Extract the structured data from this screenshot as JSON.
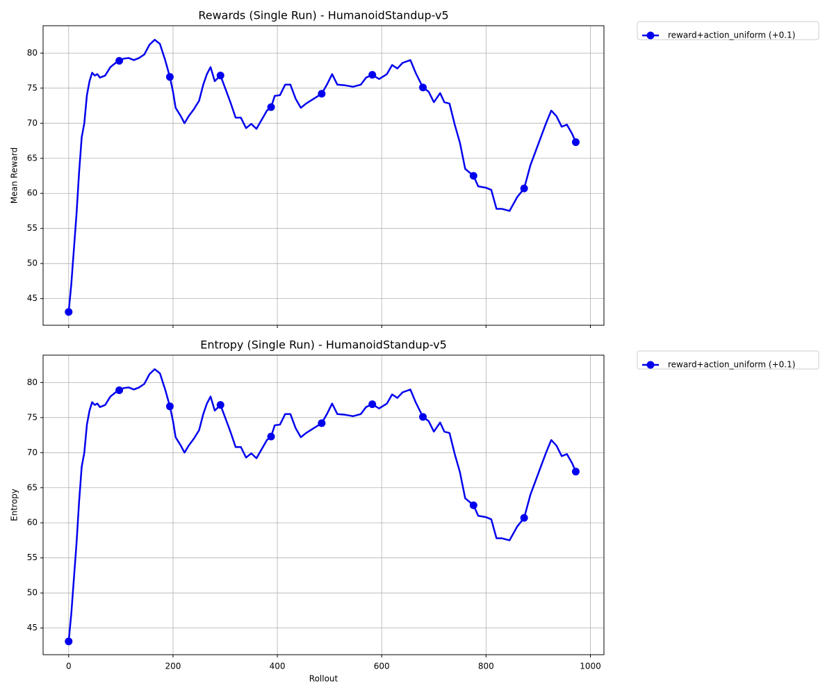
{
  "chart_data": [
    {
      "type": "line",
      "title": "Rewards (Single Run) - HumanoidStandup-v5",
      "ylabel": "Mean Reward",
      "x": [
        0,
        5,
        10,
        15,
        20,
        25,
        30,
        35,
        40,
        45,
        50,
        55,
        60,
        70,
        80,
        90,
        97,
        105,
        115,
        125,
        135,
        145,
        155,
        165,
        175,
        185,
        194,
        200,
        205,
        215,
        222,
        230,
        240,
        250,
        258,
        265,
        272,
        280,
        291,
        300,
        310,
        320,
        330,
        340,
        350,
        360,
        370,
        380,
        388,
        395,
        405,
        415,
        425,
        435,
        445,
        455,
        470,
        485,
        495,
        505,
        515,
        530,
        545,
        560,
        570,
        582,
        595,
        610,
        620,
        630,
        640,
        655,
        665,
        679,
        690,
        700,
        712,
        720,
        730,
        740,
        750,
        760,
        776,
        785,
        800,
        810,
        820,
        830,
        845,
        860,
        873,
        885,
        895,
        905,
        915,
        925,
        935,
        945,
        955,
        965,
        972,
        975
      ],
      "series": [
        {
          "name": "reward+action_uniform (+0.1)",
          "color": "#0000ee",
          "values": [
            43.1,
            47,
            52,
            57,
            63,
            68,
            70,
            74,
            76,
            77.2,
            76.8,
            77,
            76.5,
            76.8,
            78,
            78.6,
            78.9,
            79.2,
            79.3,
            79,
            79.3,
            79.8,
            81.2,
            81.9,
            81.3,
            79,
            76.6,
            74.5,
            72.2,
            71,
            70,
            71,
            72,
            73.2,
            75.5,
            77,
            78,
            76,
            76.8,
            75,
            73,
            70.8,
            70.8,
            69.3,
            69.9,
            69.2,
            70.5,
            71.8,
            72.3,
            73.9,
            74,
            75.5,
            75.5,
            73.5,
            72.2,
            72.8,
            73.5,
            74.2,
            75.5,
            77,
            75.5,
            75.4,
            75.2,
            75.5,
            76.5,
            76.9,
            76.3,
            77,
            78.3,
            77.8,
            78.6,
            79,
            77.2,
            75.1,
            74.5,
            73,
            74.3,
            73,
            72.8,
            69.8,
            67.2,
            63.5,
            62.5,
            61,
            60.8,
            60.5,
            57.8,
            57.8,
            57.5,
            59.5,
            60.7,
            64,
            66,
            68,
            70,
            71.8,
            71,
            69.5,
            69.8,
            68.5,
            67.3,
            67
          ],
          "markevery": [
            0,
            16,
            26,
            38,
            48,
            57,
            65,
            73,
            82,
            90,
            100
          ]
        }
      ],
      "xlim": [
        -49,
        1026
      ],
      "xticks": [
        0,
        200,
        400,
        600,
        800,
        1000
      ],
      "xtick_labels": false,
      "ylim": [
        41.2,
        83.9
      ],
      "yticks": [
        45,
        50,
        55,
        60,
        65,
        70,
        75,
        80
      ],
      "grid": true,
      "legend": "outside-upper-right"
    },
    {
      "type": "line",
      "title": "Entropy (Single Run) - HumanoidStandup-v5",
      "ylabel": "Entropy",
      "xlabel": "Rollout",
      "x": [
        0,
        5,
        10,
        15,
        20,
        25,
        30,
        35,
        40,
        45,
        50,
        55,
        60,
        70,
        80,
        90,
        97,
        105,
        115,
        125,
        135,
        145,
        155,
        165,
        175,
        185,
        194,
        200,
        205,
        215,
        222,
        230,
        240,
        250,
        258,
        265,
        272,
        280,
        291,
        300,
        310,
        320,
        330,
        340,
        350,
        360,
        370,
        380,
        388,
        395,
        405,
        415,
        425,
        435,
        445,
        455,
        470,
        485,
        495,
        505,
        515,
        530,
        545,
        560,
        570,
        582,
        595,
        610,
        620,
        630,
        640,
        655,
        665,
        679,
        690,
        700,
        712,
        720,
        730,
        740,
        750,
        760,
        776,
        785,
        800,
        810,
        820,
        830,
        845,
        860,
        873,
        885,
        895,
        905,
        915,
        925,
        935,
        945,
        955,
        965,
        972,
        975
      ],
      "series": [
        {
          "name": "reward+action_uniform (+0.1)",
          "color": "#0000ee",
          "values": [
            43.1,
            47,
            52,
            57,
            63,
            68,
            70,
            74,
            76,
            77.2,
            76.8,
            77,
            76.5,
            76.8,
            78,
            78.6,
            78.9,
            79.2,
            79.3,
            79,
            79.3,
            79.8,
            81.2,
            81.9,
            81.3,
            79,
            76.6,
            74.5,
            72.2,
            71,
            70,
            71,
            72,
            73.2,
            75.5,
            77,
            78,
            76,
            76.8,
            75,
            73,
            70.8,
            70.8,
            69.3,
            69.9,
            69.2,
            70.5,
            71.8,
            72.3,
            73.9,
            74,
            75.5,
            75.5,
            73.5,
            72.2,
            72.8,
            73.5,
            74.2,
            75.5,
            77,
            75.5,
            75.4,
            75.2,
            75.5,
            76.5,
            76.9,
            76.3,
            77,
            78.3,
            77.8,
            78.6,
            79,
            77.2,
            75.1,
            74.5,
            73,
            74.3,
            73,
            72.8,
            69.8,
            67.2,
            63.5,
            62.5,
            61,
            60.8,
            60.5,
            57.8,
            57.8,
            57.5,
            59.5,
            60.7,
            64,
            66,
            68,
            70,
            71.8,
            71,
            69.5,
            69.8,
            68.5,
            67.3,
            67
          ],
          "markevery": [
            0,
            16,
            26,
            38,
            48,
            57,
            65,
            73,
            82,
            90,
            100
          ]
        }
      ],
      "xlim": [
        -49,
        1026
      ],
      "xticks": [
        0,
        200,
        400,
        600,
        800,
        1000
      ],
      "xtick_labels": true,
      "ylim": [
        41.2,
        83.9
      ],
      "yticks": [
        45,
        50,
        55,
        60,
        65,
        70,
        75,
        80
      ],
      "grid": true,
      "legend": "outside-upper-right"
    }
  ]
}
